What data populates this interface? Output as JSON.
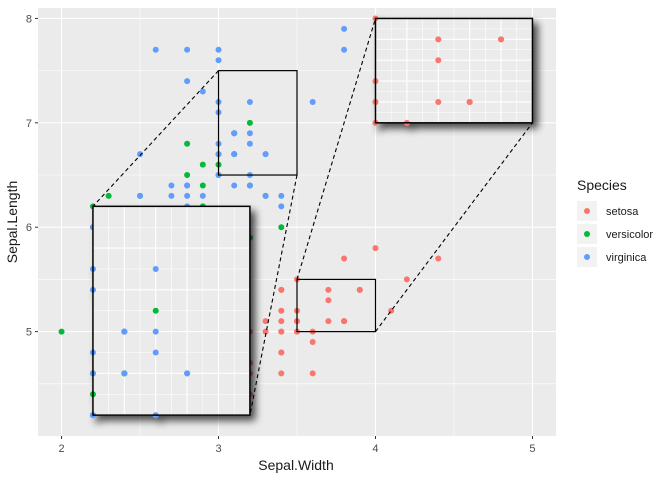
{
  "chart_data": {
    "type": "scatter",
    "xlabel": "Sepal.Width",
    "ylabel": "Sepal.Length",
    "xlim": [
      1.85,
      5.15
    ],
    "ylim": [
      4.0,
      8.1
    ],
    "x_ticks": [
      2,
      3,
      4,
      5
    ],
    "y_ticks": [
      5,
      6,
      7,
      8
    ],
    "grid": true,
    "legend_title": "Species",
    "legend_position": "right",
    "series": [
      {
        "name": "setosa",
        "color": "#F8766D",
        "points": [
          [
            3.5,
            5.1
          ],
          [
            3.0,
            4.9
          ],
          [
            3.2,
            4.7
          ],
          [
            3.1,
            4.6
          ],
          [
            3.6,
            5.0
          ],
          [
            3.9,
            5.4
          ],
          [
            3.4,
            4.6
          ],
          [
            3.4,
            5.0
          ],
          [
            2.9,
            4.4
          ],
          [
            3.1,
            4.9
          ],
          [
            3.7,
            5.4
          ],
          [
            3.4,
            4.8
          ],
          [
            3.0,
            4.8
          ],
          [
            3.0,
            4.3
          ],
          [
            4.0,
            5.8
          ],
          [
            4.4,
            5.7
          ],
          [
            3.9,
            5.4
          ],
          [
            3.5,
            5.1
          ],
          [
            3.8,
            5.7
          ],
          [
            3.8,
            5.1
          ],
          [
            3.4,
            5.4
          ],
          [
            3.7,
            5.1
          ],
          [
            3.6,
            4.6
          ],
          [
            3.3,
            5.1
          ],
          [
            3.4,
            4.8
          ],
          [
            3.0,
            5.0
          ],
          [
            3.4,
            5.0
          ],
          [
            3.5,
            5.2
          ],
          [
            3.4,
            5.2
          ],
          [
            3.2,
            4.7
          ],
          [
            3.1,
            4.8
          ],
          [
            3.4,
            5.4
          ],
          [
            4.1,
            5.2
          ],
          [
            4.2,
            5.5
          ],
          [
            3.1,
            4.9
          ],
          [
            3.2,
            5.0
          ],
          [
            3.5,
            5.5
          ],
          [
            3.6,
            4.9
          ],
          [
            3.0,
            4.4
          ],
          [
            3.4,
            5.1
          ],
          [
            3.5,
            5.0
          ],
          [
            2.3,
            4.5
          ],
          [
            3.2,
            4.4
          ],
          [
            3.5,
            5.0
          ],
          [
            3.8,
            5.1
          ],
          [
            3.0,
            4.8
          ],
          [
            3.8,
            5.1
          ],
          [
            3.2,
            4.6
          ],
          [
            3.7,
            5.3
          ],
          [
            3.3,
            5.0
          ]
        ]
      },
      {
        "name": "versicolor",
        "color": "#00BA38",
        "points": [
          [
            3.2,
            7.0
          ],
          [
            3.2,
            6.4
          ],
          [
            3.1,
            6.9
          ],
          [
            2.3,
            5.5
          ],
          [
            2.8,
            6.5
          ],
          [
            2.8,
            5.7
          ],
          [
            3.3,
            6.3
          ],
          [
            2.4,
            4.9
          ],
          [
            2.9,
            6.6
          ],
          [
            2.7,
            5.2
          ],
          [
            2.0,
            5.0
          ],
          [
            3.0,
            5.9
          ],
          [
            2.2,
            6.0
          ],
          [
            2.9,
            6.1
          ],
          [
            2.9,
            5.6
          ],
          [
            3.1,
            6.7
          ],
          [
            3.0,
            5.6
          ],
          [
            2.7,
            5.8
          ],
          [
            2.2,
            6.2
          ],
          [
            2.5,
            5.6
          ],
          [
            3.2,
            5.9
          ],
          [
            2.8,
            6.1
          ],
          [
            2.5,
            6.3
          ],
          [
            2.8,
            6.1
          ],
          [
            2.9,
            6.4
          ],
          [
            3.0,
            6.6
          ],
          [
            2.8,
            6.8
          ],
          [
            3.0,
            6.7
          ],
          [
            2.9,
            6.0
          ],
          [
            2.6,
            5.7
          ],
          [
            2.4,
            5.5
          ],
          [
            2.4,
            5.5
          ],
          [
            2.7,
            5.8
          ],
          [
            2.7,
            6.0
          ],
          [
            3.0,
            5.4
          ],
          [
            3.4,
            6.0
          ],
          [
            3.1,
            6.7
          ],
          [
            2.3,
            6.3
          ],
          [
            3.0,
            5.6
          ],
          [
            2.5,
            5.5
          ],
          [
            2.6,
            5.5
          ],
          [
            3.0,
            6.1
          ],
          [
            2.6,
            5.8
          ],
          [
            2.3,
            5.0
          ],
          [
            2.7,
            5.6
          ],
          [
            3.0,
            5.7
          ],
          [
            2.9,
            5.7
          ],
          [
            2.9,
            6.2
          ],
          [
            2.5,
            5.1
          ],
          [
            2.8,
            5.7
          ]
        ]
      },
      {
        "name": "virginica",
        "color": "#619CFF",
        "points": [
          [
            3.3,
            6.3
          ],
          [
            2.7,
            5.8
          ],
          [
            3.0,
            7.1
          ],
          [
            2.9,
            6.3
          ],
          [
            3.0,
            6.5
          ],
          [
            3.0,
            7.6
          ],
          [
            2.5,
            4.9
          ],
          [
            2.9,
            7.3
          ],
          [
            2.5,
            6.7
          ],
          [
            3.6,
            7.2
          ],
          [
            3.2,
            6.5
          ],
          [
            2.7,
            6.4
          ],
          [
            3.0,
            6.8
          ],
          [
            2.5,
            5.7
          ],
          [
            2.8,
            5.8
          ],
          [
            3.2,
            6.4
          ],
          [
            3.0,
            6.5
          ],
          [
            3.8,
            7.7
          ],
          [
            2.6,
            7.7
          ],
          [
            2.2,
            6.0
          ],
          [
            3.2,
            6.9
          ],
          [
            2.8,
            5.6
          ],
          [
            2.8,
            7.7
          ],
          [
            2.7,
            6.3
          ],
          [
            3.3,
            6.7
          ],
          [
            3.2,
            7.2
          ],
          [
            2.8,
            6.2
          ],
          [
            3.0,
            6.1
          ],
          [
            2.8,
            6.4
          ],
          [
            3.0,
            7.2
          ],
          [
            2.8,
            7.4
          ],
          [
            3.8,
            7.9
          ],
          [
            2.8,
            6.4
          ],
          [
            2.8,
            6.3
          ],
          [
            2.6,
            6.1
          ],
          [
            3.0,
            7.7
          ],
          [
            3.4,
            6.3
          ],
          [
            3.1,
            6.4
          ],
          [
            3.0,
            6.0
          ],
          [
            3.1,
            6.9
          ],
          [
            3.1,
            6.7
          ],
          [
            3.1,
            6.9
          ],
          [
            2.7,
            5.8
          ],
          [
            3.2,
            6.8
          ],
          [
            3.3,
            6.7
          ],
          [
            3.0,
            6.7
          ],
          [
            2.5,
            6.3
          ],
          [
            3.0,
            6.5
          ],
          [
            3.4,
            6.2
          ],
          [
            3.0,
            5.9
          ]
        ]
      }
    ],
    "zoom_insets": [
      {
        "region_x": [
          3.0,
          3.5
        ],
        "region_y": [
          6.5,
          7.5
        ],
        "inset_x": [
          2.2,
          3.2
        ],
        "inset_y": [
          4.2,
          6.2
        ]
      },
      {
        "region_x": [
          3.5,
          4.0
        ],
        "region_y": [
          5.0,
          5.5
        ],
        "inset_x": [
          4.0,
          5.0
        ],
        "inset_y": [
          7.0,
          8.0
        ]
      }
    ]
  }
}
